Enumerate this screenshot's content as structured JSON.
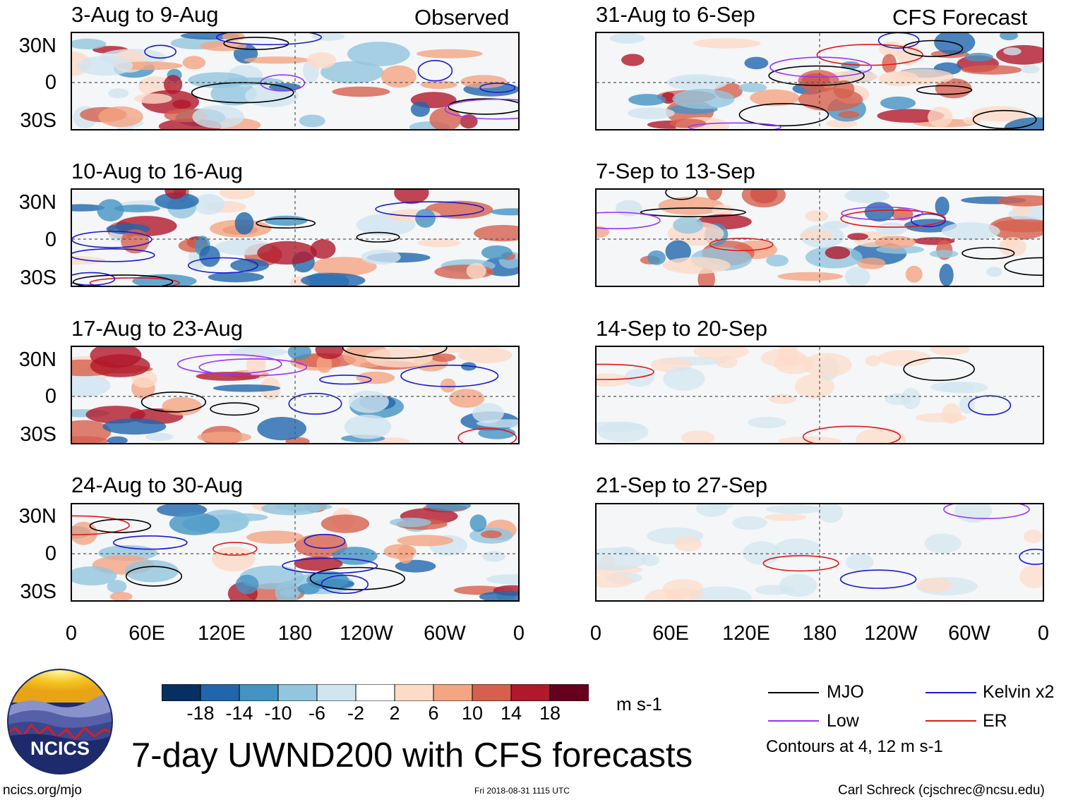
{
  "column_titles": {
    "left": "Observed",
    "right": "CFS Forecast"
  },
  "panels": {
    "obs": [
      {
        "title": "3-Aug to 9-Aug"
      },
      {
        "title": "10-Aug to 16-Aug"
      },
      {
        "title": "17-Aug to 23-Aug"
      },
      {
        "title": "24-Aug to 30-Aug"
      }
    ],
    "fcst": [
      {
        "title": "31-Aug to 6-Sep"
      },
      {
        "title": "7-Sep to 13-Sep"
      },
      {
        "title": "14-Sep to 20-Sep"
      },
      {
        "title": "21-Sep to 27-Sep"
      }
    ]
  },
  "lat_labels": [
    "30N",
    "0",
    "30S"
  ],
  "lon_labels": [
    "0",
    "60E",
    "120E",
    "180",
    "120W",
    "60W",
    "0"
  ],
  "colorbar": {
    "unit": "m s-1",
    "ticks": [
      "-18",
      "-14",
      "-10",
      "-6",
      "-2",
      "2",
      "6",
      "10",
      "14",
      "18"
    ],
    "colors": [
      "#053061",
      "#2166ac",
      "#4393c3",
      "#92c5de",
      "#d1e5f0",
      "#ffffff",
      "#fddbc7",
      "#f4a582",
      "#d6604d",
      "#b2182b",
      "#67001f"
    ]
  },
  "legend": {
    "items": [
      {
        "label": "MJO",
        "color": "#000000"
      },
      {
        "label": "Kelvin x2",
        "color": "#1a1acc"
      },
      {
        "label": "Low",
        "color": "#9933ff"
      },
      {
        "label": "ER",
        "color": "#e01818"
      }
    ],
    "note": "Contours at 4, 12 m s-1"
  },
  "logo": {
    "text": "NCICS"
  },
  "main_title": "7-day UWND200 with CFS forecasts",
  "footer": {
    "left": "ncics.org/mjo",
    "center": "Fri 2018-08-31 1115 UTC",
    "right": "Carl Schreck (cjschrec@ncsu.edu)"
  }
}
